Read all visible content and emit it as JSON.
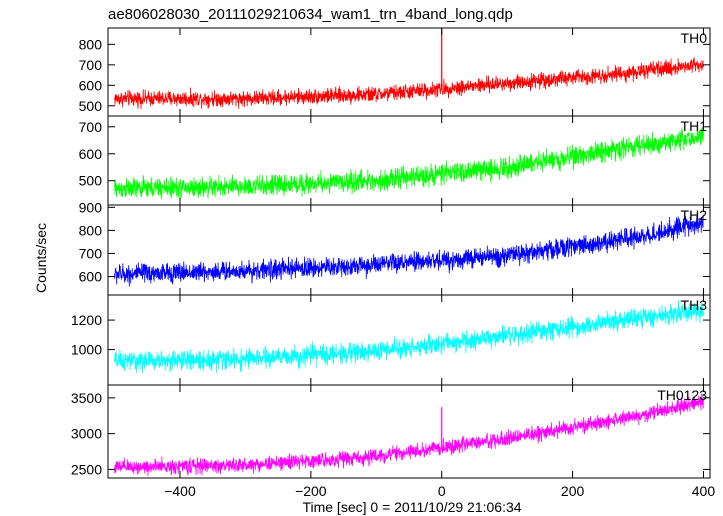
{
  "title": "ae806028030_20111029210634_wam1_trn_4band_long.qdp",
  "xlabel": "Time [sec] 0 = 2011/10/29 21:06:34",
  "ylabel": "Counts/sec",
  "chart_data": {
    "type": "line",
    "x_range": [
      -510,
      410
    ],
    "x_ticks": [
      -400,
      -200,
      0,
      200,
      400
    ],
    "x_tick_labels": [
      "−400",
      "−200",
      "0",
      "200",
      "400"
    ],
    "x_data_range": [
      -500,
      400
    ],
    "panels": [
      {
        "name": "TH0",
        "color": "#ff0000",
        "ylim": [
          450,
          880
        ],
        "yticks": [
          500,
          600,
          700,
          800
        ],
        "trend": [
          [
            -500,
            535
          ],
          [
            -300,
            535
          ],
          [
            -100,
            555
          ],
          [
            100,
            610
          ],
          [
            300,
            665
          ],
          [
            400,
            705
          ]
        ],
        "noise_amplitude": 40,
        "spikes": [
          {
            "x": 0,
            "y": 880
          }
        ]
      },
      {
        "name": "TH1",
        "color": "#00ff00",
        "ylim": [
          410,
          740
        ],
        "yticks": [
          500,
          600,
          700
        ],
        "trend": [
          [
            -500,
            470
          ],
          [
            -300,
            478
          ],
          [
            -100,
            500
          ],
          [
            100,
            550
          ],
          [
            300,
            630
          ],
          [
            400,
            665
          ]
        ],
        "noise_amplitude": 40
      },
      {
        "name": "TH2",
        "color": "#0000ff",
        "ylim": [
          520,
          910
        ],
        "yticks": [
          600,
          700,
          800,
          900
        ],
        "trend": [
          [
            -500,
            610
          ],
          [
            -300,
            625
          ],
          [
            -100,
            650
          ],
          [
            100,
            690
          ],
          [
            300,
            770
          ],
          [
            400,
            835
          ]
        ],
        "noise_amplitude": 45
      },
      {
        "name": "TH3",
        "color": "#00ffff",
        "ylim": [
          760,
          1370
        ],
        "yticks": [
          1000,
          1200
        ],
        "trend": [
          [
            -500,
            920
          ],
          [
            -300,
            935
          ],
          [
            -100,
            990
          ],
          [
            100,
            1090
          ],
          [
            300,
            1215
          ],
          [
            400,
            1265
          ]
        ],
        "noise_amplitude": 70
      },
      {
        "name": "TH0123",
        "color": "#ff00ff",
        "ylim": [
          2380,
          3680
        ],
        "yticks": [
          2500,
          3000,
          3500
        ],
        "trend": [
          [
            -500,
            2530
          ],
          [
            -300,
            2560
          ],
          [
            -100,
            2680
          ],
          [
            100,
            2930
          ],
          [
            300,
            3250
          ],
          [
            400,
            3450
          ]
        ],
        "noise_amplitude": 110,
        "spikes": [
          {
            "x": 0,
            "y": 3370
          }
        ]
      }
    ]
  }
}
